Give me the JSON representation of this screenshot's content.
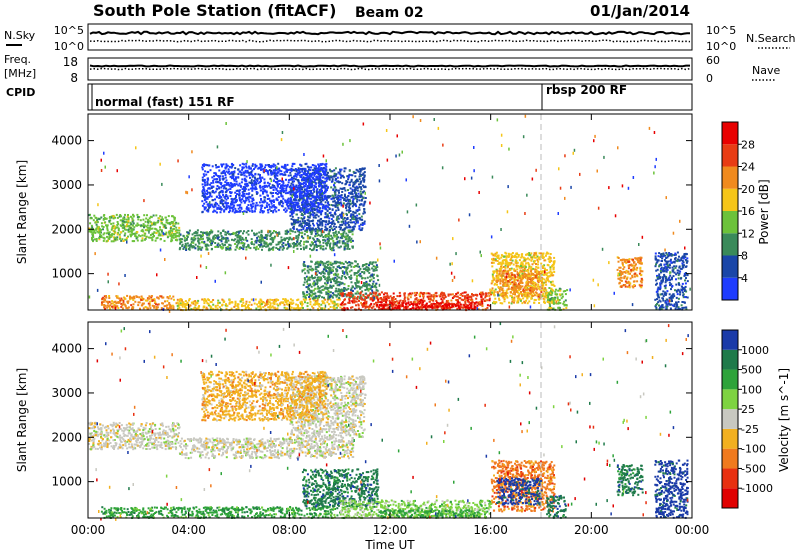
{
  "header": {
    "title": "South Pole Station (fitACF)",
    "beam": "Beam 02",
    "date": "01/Jan/2014"
  },
  "sky_panel": {
    "left_label": "N.Sky",
    "left_ticks": [
      "10^5",
      "10^0"
    ],
    "right_ticks": [
      "10^5",
      "10^0"
    ],
    "right_label": "N.Search"
  },
  "freq_panel": {
    "left_label_1": "Freq.",
    "left_label_2": "[MHz]",
    "left_ticks": [
      "18",
      "8"
    ],
    "right_ticks": [
      "60",
      "0"
    ],
    "right_label": "Nave"
  },
  "cpid_panel": {
    "label": "CPID",
    "mode_1": "normal (fast) 151 RF",
    "mode_2": "rbsp 200 RF"
  },
  "chart_data": [
    {
      "type": "heatmap",
      "title": "",
      "xlabel": "Time UT",
      "ylabel": "Slant Range [km]",
      "xlim": [
        0,
        24
      ],
      "ylim": [
        180,
        4600
      ],
      "x_ticks": [
        "00:00",
        "04:00",
        "08:00",
        "12:00",
        "16:00",
        "20:00",
        "00:00"
      ],
      "y_ticks": [
        1000,
        2000,
        3000,
        4000
      ],
      "colorbar_label": "Power [dB]",
      "colorbar_ticks": [
        4,
        8,
        12,
        16,
        20,
        24,
        28
      ],
      "colorbar_colors": [
        "#1f3cff",
        "#1a46a8",
        "#3a8a5a",
        "#6cc23a",
        "#f5c518",
        "#f08a1e",
        "#e83c14",
        "#e80000"
      ],
      "marker_time": 18,
      "regions": [
        {
          "t0": 0.0,
          "t1": 3.6,
          "r0": 1750,
          "r1": 2350,
          "level": 3
        },
        {
          "t0": 3.6,
          "t1": 10.5,
          "r0": 1550,
          "r1": 2000,
          "level": 2
        },
        {
          "t0": 0.5,
          "t1": 3.5,
          "r0": 230,
          "r1": 520,
          "level": 5
        },
        {
          "t0": 3.5,
          "t1": 10.0,
          "r0": 200,
          "r1": 450,
          "level": 4
        },
        {
          "t0": 8.5,
          "t1": 11.5,
          "r0": 450,
          "r1": 1300,
          "level": 2
        },
        {
          "t0": 8.0,
          "t1": 11.0,
          "r0": 2000,
          "r1": 3400,
          "level": 1
        },
        {
          "t0": 10.0,
          "t1": 16.0,
          "r0": 200,
          "r1": 600,
          "level": 6
        },
        {
          "t0": 11.5,
          "t1": 15.5,
          "r0": 220,
          "r1": 380,
          "level": 7
        },
        {
          "t0": 16.0,
          "t1": 18.5,
          "r0": 350,
          "r1": 1500,
          "level": 4
        },
        {
          "t0": 16.2,
          "t1": 18.0,
          "r0": 500,
          "r1": 1100,
          "level": 5
        },
        {
          "t0": 18.2,
          "t1": 19.0,
          "r0": 200,
          "r1": 700,
          "level": 3
        },
        {
          "t0": 21.0,
          "t1": 22.0,
          "r0": 700,
          "r1": 1400,
          "level": 5
        },
        {
          "t0": 22.5,
          "t1": 23.8,
          "r0": 200,
          "r1": 1500,
          "level": 1
        },
        {
          "t0": 4.5,
          "t1": 9.5,
          "r0": 2400,
          "r1": 3500,
          "level": 0
        }
      ]
    },
    {
      "type": "heatmap",
      "title": "",
      "xlabel": "Time UT",
      "ylabel": "Slant Range [km]",
      "xlim": [
        0,
        24
      ],
      "ylim": [
        180,
        4600
      ],
      "x_ticks": [
        "00:00",
        "04:00",
        "08:00",
        "12:00",
        "16:00",
        "20:00",
        "00:00"
      ],
      "y_ticks": [
        1000,
        2000,
        3000,
        4000
      ],
      "colorbar_label": "Velocity [m s^-1]",
      "colorbar_unit_sup": "-1",
      "colorbar_ticks": [
        "1000",
        "500",
        "100",
        "25",
        "-25",
        "-100",
        "-500",
        "-1000"
      ],
      "colorbar_colors": [
        "#1a3aa8",
        "#1f7a4a",
        "#2ea33a",
        "#7ed341",
        "#c8c8c0",
        "#f2b020",
        "#f07a1e",
        "#e83010",
        "#e00000"
      ],
      "marker_time": 18,
      "regions": [
        {
          "t0": 0.0,
          "t1": 3.6,
          "r0": 1750,
          "r1": 2350,
          "level": 4
        },
        {
          "t0": 3.6,
          "t1": 10.5,
          "r0": 1550,
          "r1": 2000,
          "level": 4
        },
        {
          "t0": 0.5,
          "t1": 3.5,
          "r0": 200,
          "r1": 450,
          "level": 2
        },
        {
          "t0": 3.5,
          "t1": 10.0,
          "r0": 200,
          "r1": 450,
          "level": 2
        },
        {
          "t0": 8.5,
          "t1": 11.5,
          "r0": 450,
          "r1": 1300,
          "level": 1
        },
        {
          "t0": 8.0,
          "t1": 11.0,
          "r0": 2000,
          "r1": 3400,
          "level": 4
        },
        {
          "t0": 10.0,
          "t1": 16.0,
          "r0": 200,
          "r1": 600,
          "level": 3
        },
        {
          "t0": 11.5,
          "t1": 15.5,
          "r0": 220,
          "r1": 380,
          "level": 2
        },
        {
          "t0": 16.0,
          "t1": 18.5,
          "r0": 350,
          "r1": 1500,
          "level": 6
        },
        {
          "t0": 16.2,
          "t1": 18.0,
          "r0": 500,
          "r1": 1100,
          "level": 0
        },
        {
          "t0": 18.2,
          "t1": 19.0,
          "r0": 200,
          "r1": 700,
          "level": 1
        },
        {
          "t0": 21.0,
          "t1": 22.0,
          "r0": 700,
          "r1": 1400,
          "level": 1
        },
        {
          "t0": 22.5,
          "t1": 23.8,
          "r0": 200,
          "r1": 1500,
          "level": 0
        },
        {
          "t0": 4.5,
          "t1": 9.5,
          "r0": 2400,
          "r1": 3500,
          "level": 5
        }
      ]
    }
  ]
}
